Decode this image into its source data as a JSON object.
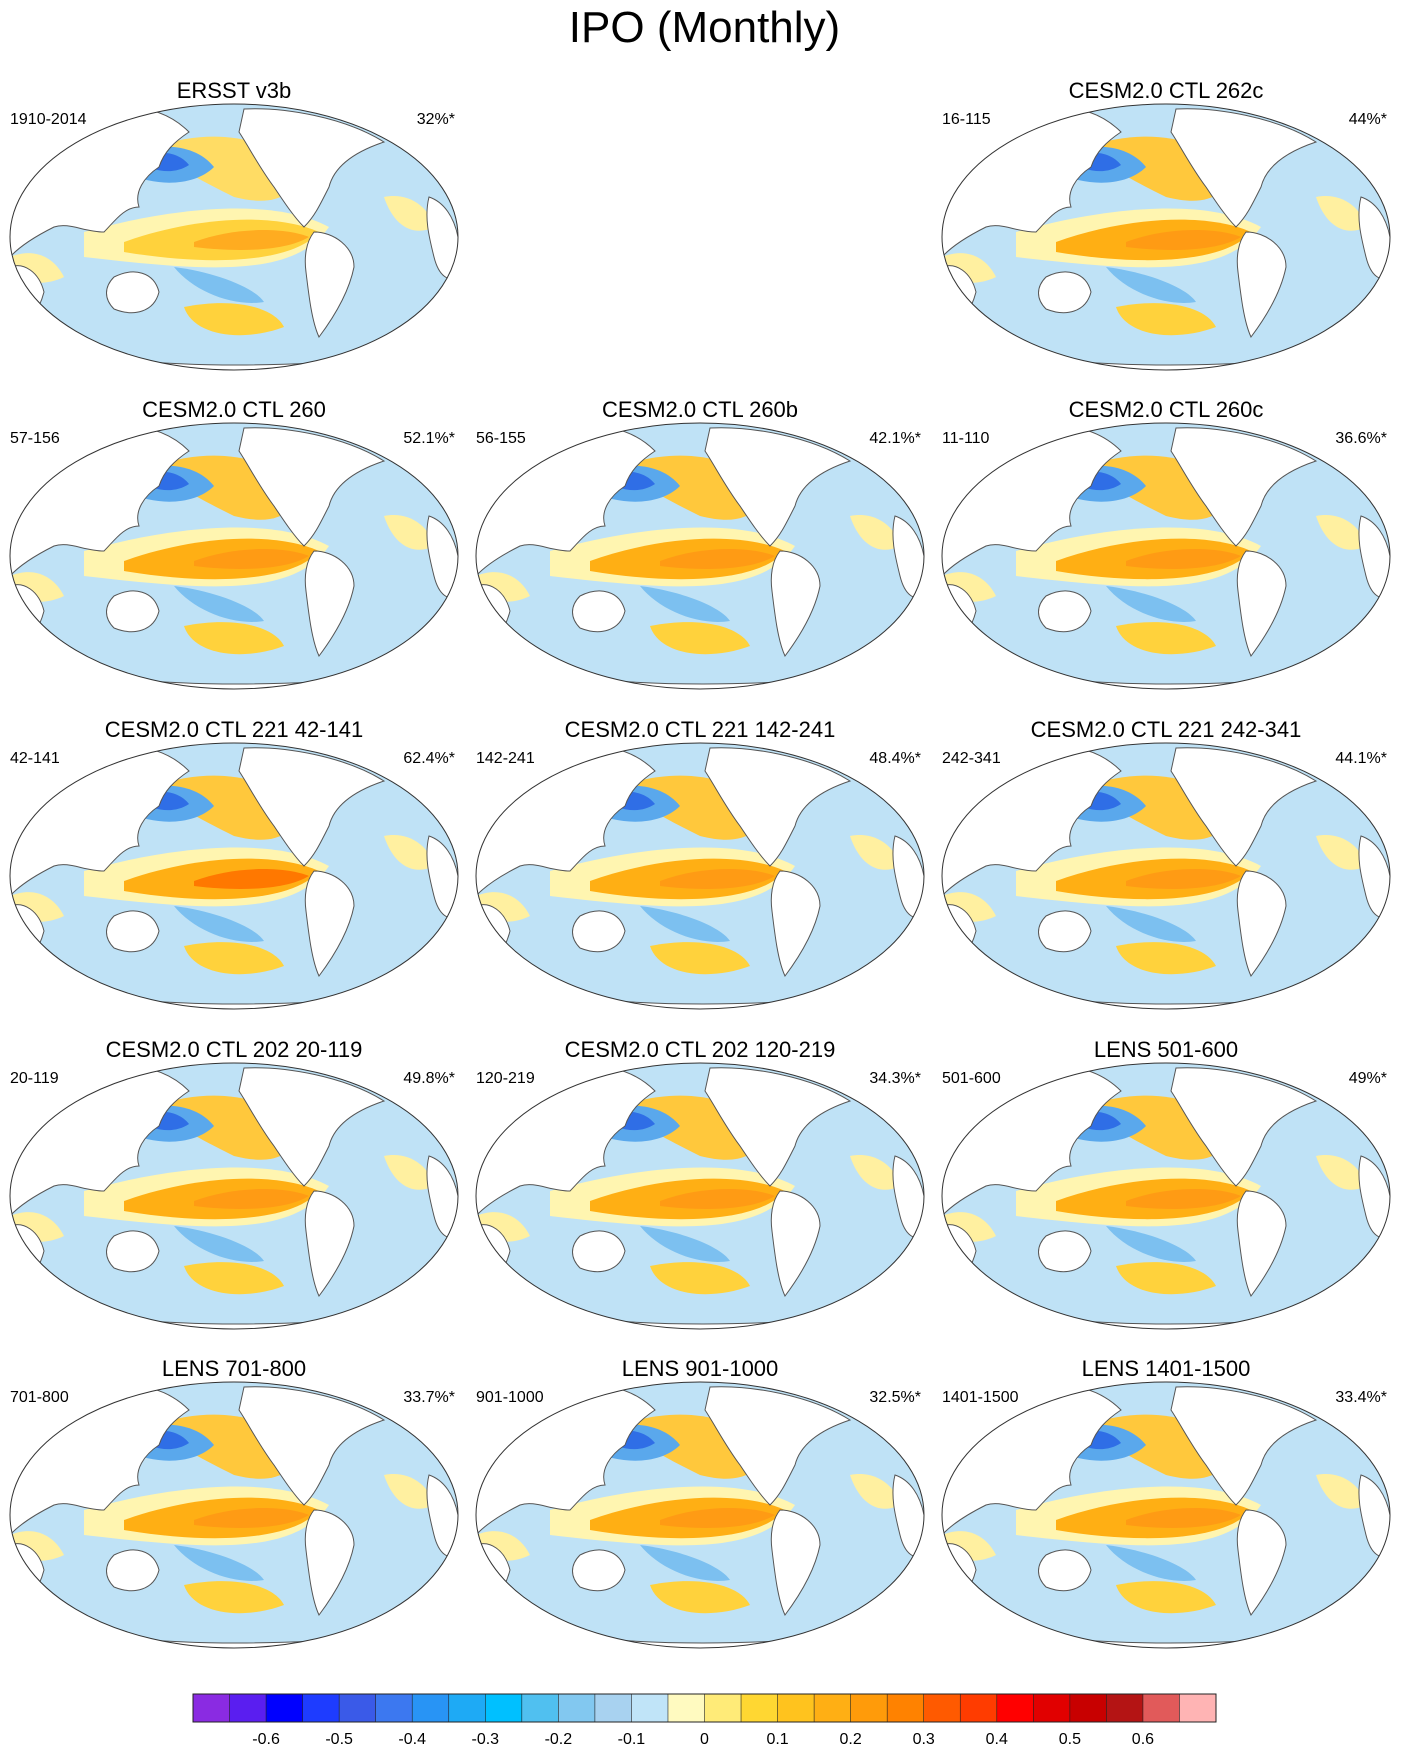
{
  "figure_title": "IPO (Monthly)",
  "panels": [
    {
      "title": "ERSST v3b",
      "years": "1910-2014",
      "variance": "32%*"
    },
    {
      "title": "CESM2.0 CTL 262c",
      "years": "16-115",
      "variance": "44%*"
    },
    {
      "title": "CESM2.0 CTL 260",
      "years": "57-156",
      "variance": "52.1%*"
    },
    {
      "title": "CESM2.0 CTL 260b",
      "years": "56-155",
      "variance": "42.1%*"
    },
    {
      "title": "CESM2.0 CTL 260c",
      "years": "11-110",
      "variance": "36.6%*"
    },
    {
      "title": "CESM2.0 CTL 221 42-141",
      "years": "42-141",
      "variance": "62.4%*"
    },
    {
      "title": "CESM2.0 CTL 221 142-241",
      "years": "142-241",
      "variance": "48.4%*"
    },
    {
      "title": "CESM2.0 CTL 221 242-341",
      "years": "242-341",
      "variance": "44.1%*"
    },
    {
      "title": "CESM2.0 CTL 202 20-119",
      "years": "20-119",
      "variance": "49.8%*"
    },
    {
      "title": "CESM2.0 CTL 202 120-219",
      "years": "120-219",
      "variance": "34.3%*"
    },
    {
      "title": "LENS 501-600",
      "years": "501-600",
      "variance": "49%*"
    },
    {
      "title": "LENS 701-800",
      "years": "701-800",
      "variance": "33.7%*"
    },
    {
      "title": "LENS 901-1000",
      "years": "901-1000",
      "variance": "32.5%*"
    },
    {
      "title": "LENS 1401-1500",
      "years": "1401-1500",
      "variance": "33.4%*"
    }
  ],
  "colorbar": {
    "colors": [
      "#8a2be2",
      "#5a1ef0",
      "#0000ff",
      "#1e3cff",
      "#3a5ae8",
      "#3c78f0",
      "#2894f5",
      "#1eaaf5",
      "#00c0ff",
      "#50c0f0",
      "#82c8f0",
      "#a8d2f0",
      "#c0e4f8",
      "#fffac0",
      "#ffeb78",
      "#ffd732",
      "#ffc31e",
      "#ffaf14",
      "#ff9b0a",
      "#ff8200",
      "#ff5a00",
      "#ff3c00",
      "#ff0000",
      "#e10000",
      "#c80000",
      "#b41414",
      "#e15a5a",
      "#ffb4b4"
    ],
    "labels": [
      "-0.6",
      "-0.5",
      "-0.4",
      "-0.3",
      "-0.2",
      "-0.1",
      "0",
      "0.1",
      "0.2",
      "0.3",
      "0.4",
      "0.5",
      "0.6"
    ]
  }
}
